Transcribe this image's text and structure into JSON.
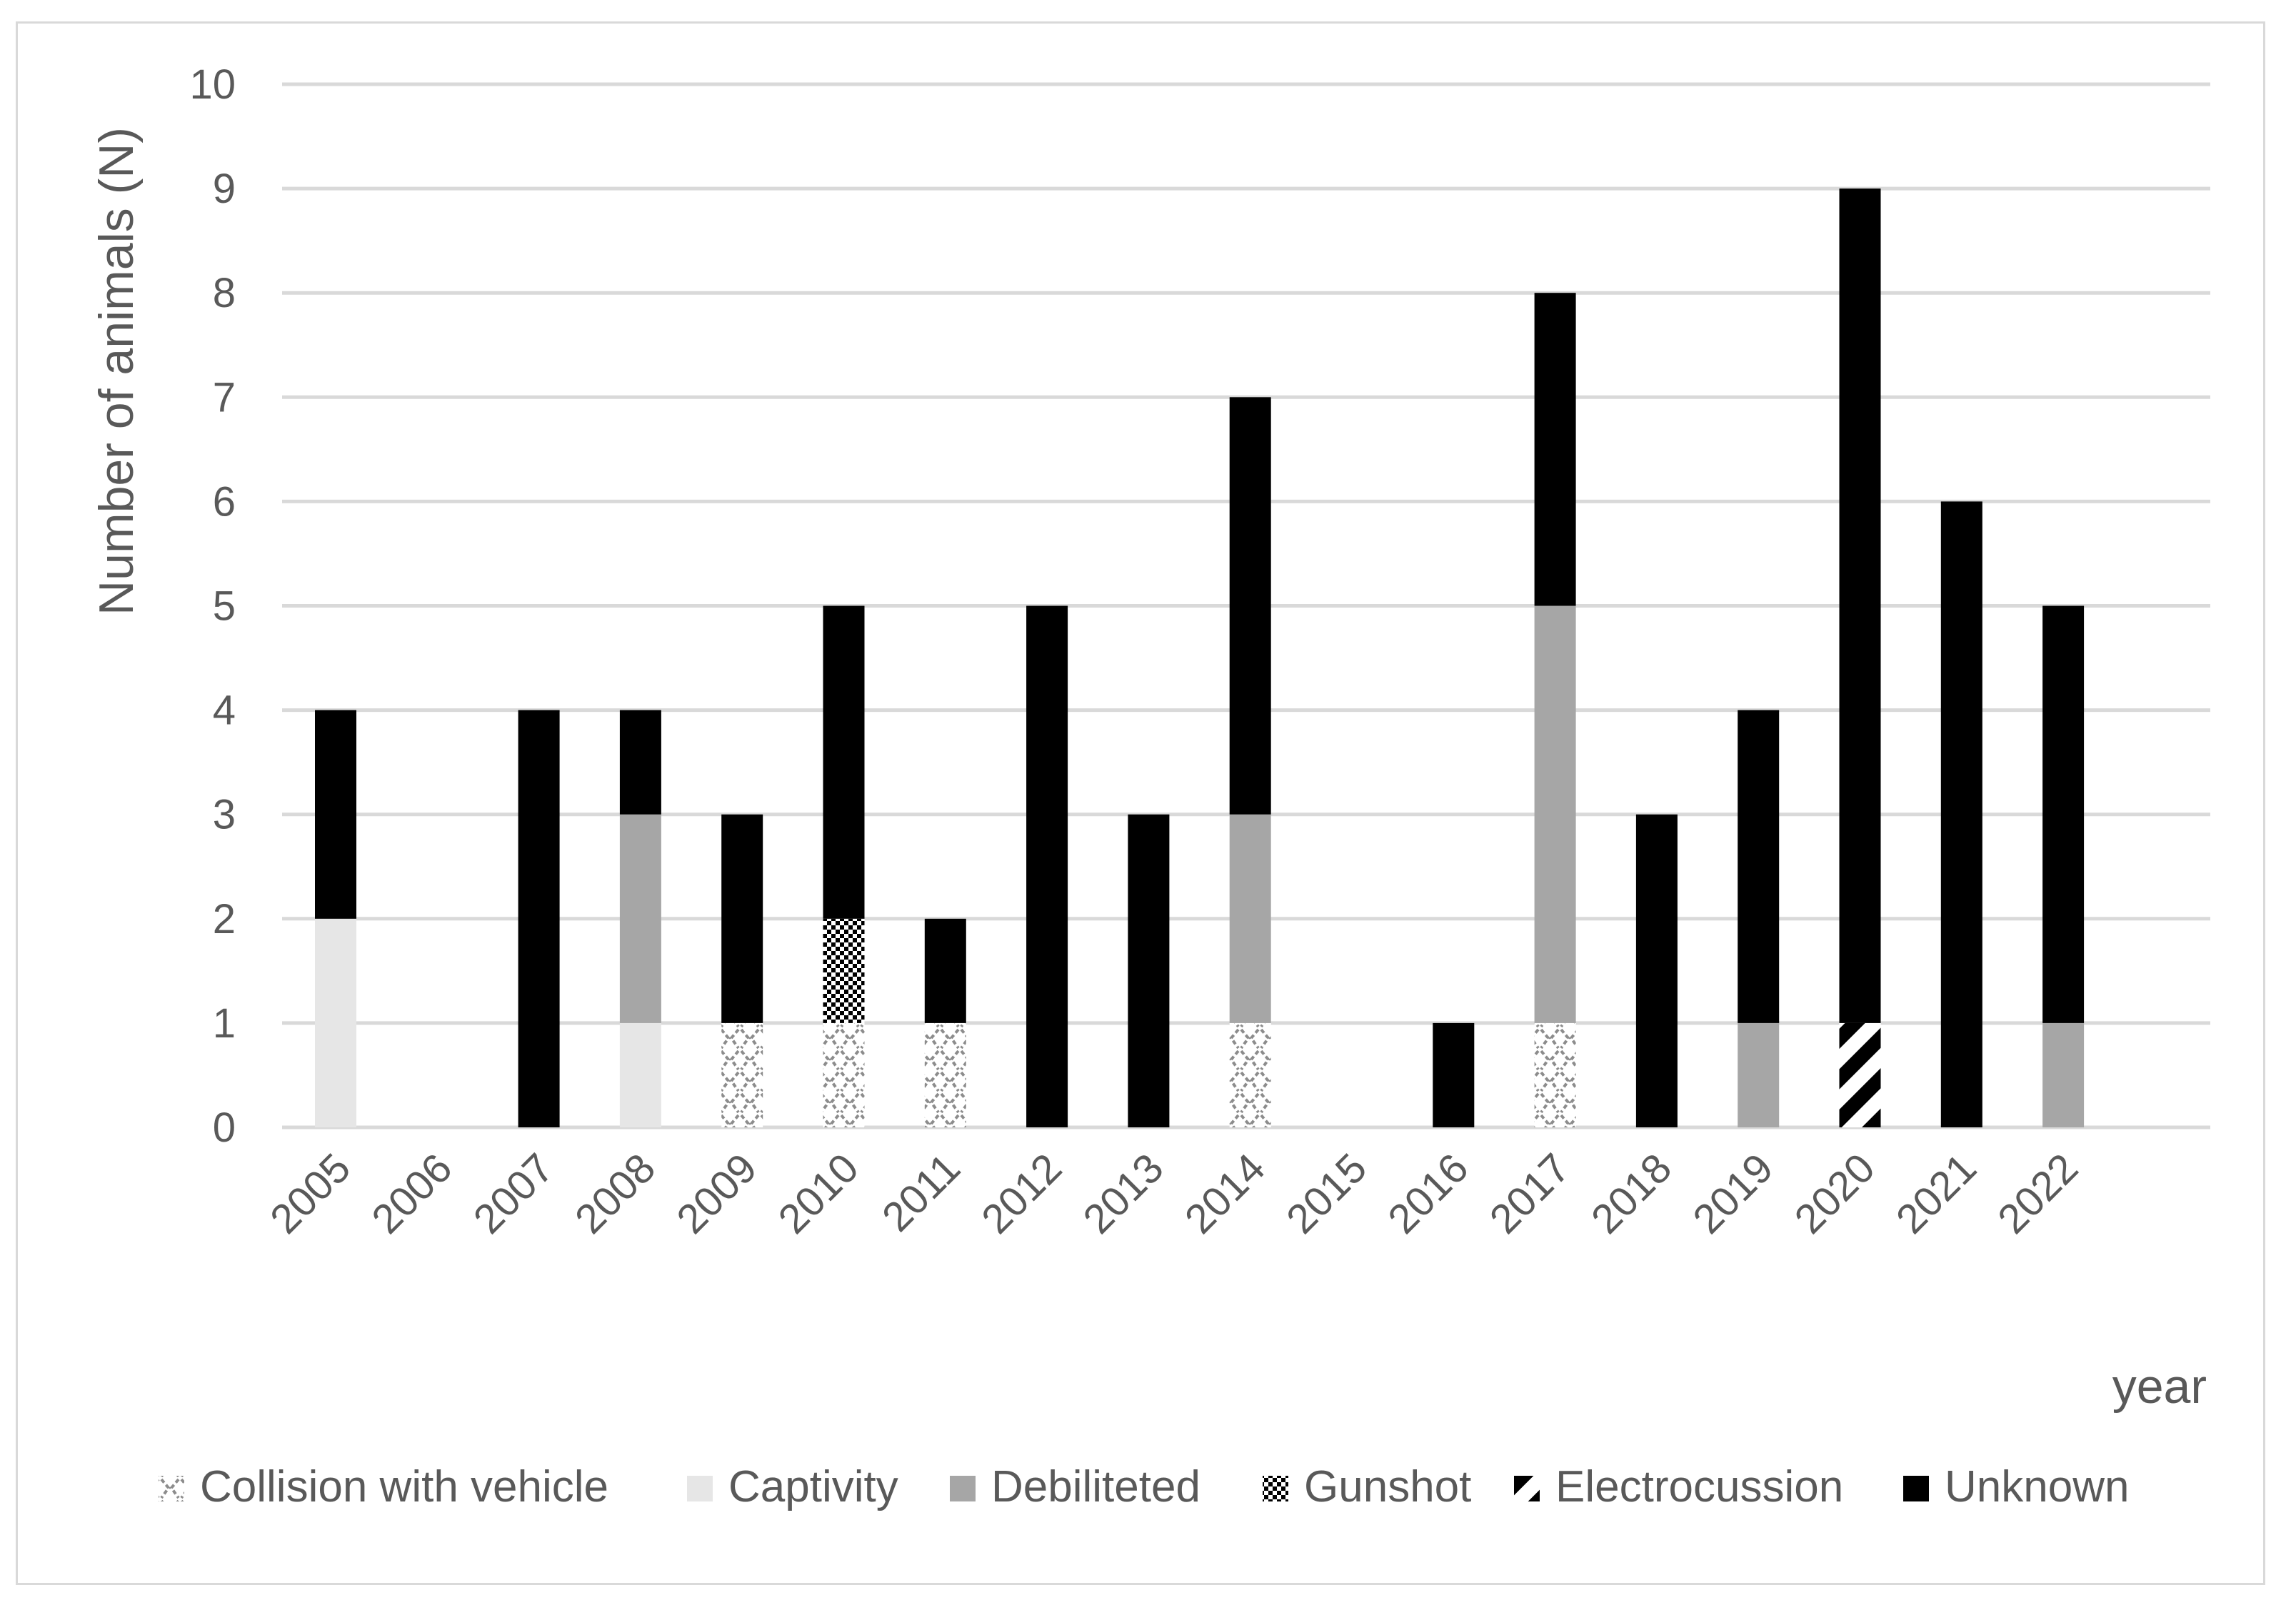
{
  "chart_data": {
    "type": "bar",
    "stacked": true,
    "categories": [
      "2005",
      "2006",
      "2007",
      "2008",
      "2009",
      "2010",
      "2011",
      "2012",
      "2013",
      "2014",
      "2015",
      "2016",
      "2017",
      "2018",
      "2019",
      "2020",
      "2021",
      "2022"
    ],
    "series": [
      {
        "name": "Collision with vehicle",
        "pattern": "zigzag",
        "color": "#7f7f7f",
        "values": [
          0,
          0,
          0,
          0,
          1,
          1,
          1,
          0,
          0,
          1,
          0,
          0,
          1,
          0,
          0,
          0,
          0,
          0
        ]
      },
      {
        "name": "Captivity",
        "pattern": "solid",
        "color": "#e6e6e6",
        "values": [
          2,
          0,
          0,
          1,
          0,
          0,
          0,
          0,
          0,
          0,
          0,
          0,
          0,
          0,
          0,
          0,
          0,
          0
        ]
      },
      {
        "name": "Debiliteted",
        "pattern": "solid",
        "color": "#a6a6a6",
        "values": [
          0,
          0,
          0,
          2,
          0,
          0,
          0,
          0,
          0,
          2,
          0,
          0,
          4,
          0,
          1,
          0,
          0,
          1
        ]
      },
      {
        "name": "Gunshot",
        "pattern": "checker",
        "color": "#000000",
        "values": [
          0,
          0,
          0,
          0,
          0,
          1,
          0,
          0,
          0,
          0,
          0,
          0,
          0,
          0,
          0,
          0,
          0,
          0
        ]
      },
      {
        "name": "Electrocussion",
        "pattern": "diagonal",
        "color": "#000000",
        "values": [
          0,
          0,
          0,
          0,
          0,
          0,
          0,
          0,
          0,
          0,
          0,
          0,
          0,
          0,
          0,
          1,
          0,
          0
        ]
      },
      {
        "name": "Unknown",
        "pattern": "solid",
        "color": "#000000",
        "values": [
          2,
          0,
          4,
          1,
          2,
          3,
          1,
          5,
          3,
          4,
          0,
          1,
          3,
          3,
          3,
          8,
          6,
          4
        ]
      }
    ],
    "xlabel": "year",
    "ylabel": "Number of animals (N)",
    "ylim": [
      0,
      10
    ],
    "yticks": [
      "0",
      "1",
      "2",
      "3",
      "4",
      "5",
      "6",
      "7",
      "8",
      "9",
      "10"
    ],
    "grid": true,
    "gridColor": "#d9d9d9",
    "legend": "bottom"
  }
}
